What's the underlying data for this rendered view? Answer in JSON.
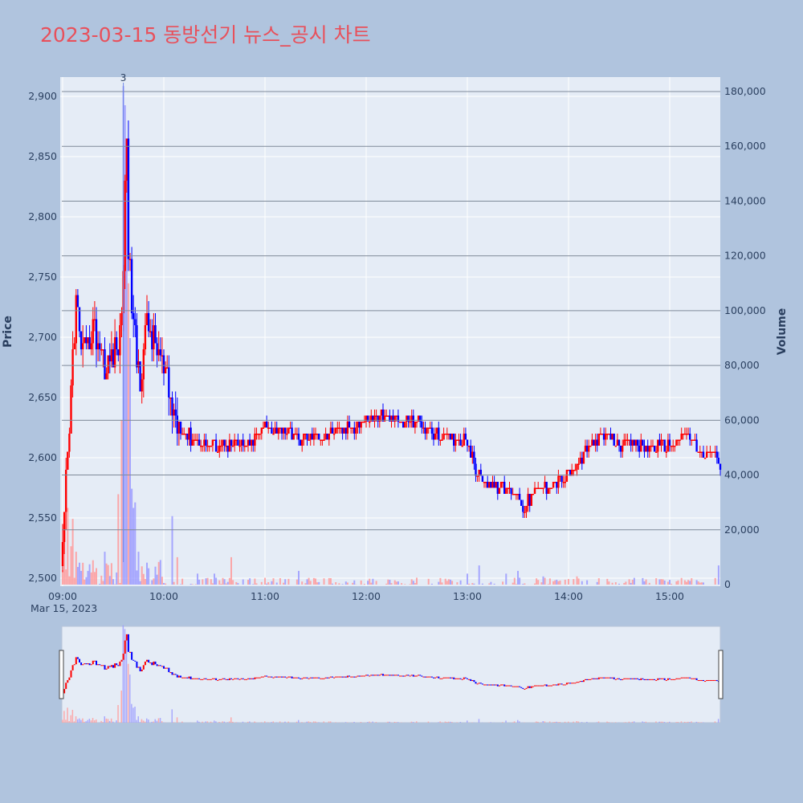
{
  "title": "2023-03-15 동방선기 뉴스_공시 차트",
  "colors": {
    "up": "#ff0000",
    "down": "#0000ff",
    "up_volume": "#ff9a9a",
    "down_volume": "#9a9aff",
    "background": "#b0c4de",
    "plot_bg": "#e5ecf6"
  },
  "chart_data": {
    "type": "candlestick",
    "title": "2023-03-15 동방선기 뉴스_공시 차트",
    "ylabel": "Price",
    "y2label": "Volume",
    "ylim": [
      2495,
      2910
    ],
    "y2lim": [
      0,
      185000
    ],
    "yticks": [
      "2,500",
      "2,550",
      "2,600",
      "2,650",
      "2,700",
      "2,750",
      "2,800",
      "2,850",
      "2,900"
    ],
    "y2ticks": [
      "0",
      "20,000",
      "40,000",
      "60,000",
      "80,000",
      "100,000",
      "120,000",
      "140,000",
      "160,000",
      "180,000"
    ],
    "xticks": [
      "09:00",
      "10:00",
      "11:00",
      "12:00",
      "13:00",
      "14:00",
      "15:00"
    ],
    "xdate": "Mar 15, 2023",
    "annotation": {
      "time": "09:36",
      "text": "3"
    },
    "grid": true,
    "rangeslider": true,
    "anchors": [
      [
        "09:00",
        2520
      ],
      [
        "09:02",
        2575
      ],
      [
        "09:04",
        2620
      ],
      [
        "09:06",
        2685
      ],
      [
        "09:08",
        2730
      ],
      [
        "09:10",
        2700
      ],
      [
        "09:12",
        2690
      ],
      [
        "09:14",
        2680
      ],
      [
        "09:16",
        2700
      ],
      [
        "09:18",
        2710
      ],
      [
        "09:20",
        2700
      ],
      [
        "09:22",
        2695
      ],
      [
        "09:24",
        2685
      ],
      [
        "09:26",
        2670
      ],
      [
        "09:28",
        2680
      ],
      [
        "09:30",
        2685
      ],
      [
        "09:32",
        2690
      ],
      [
        "09:34",
        2700
      ],
      [
        "09:36",
        2760
      ],
      [
        "09:37",
        2820
      ],
      [
        "09:38",
        2870
      ],
      [
        "09:39",
        2780
      ],
      [
        "09:40",
        2750
      ],
      [
        "09:42",
        2710
      ],
      [
        "09:44",
        2680
      ],
      [
        "09:46",
        2670
      ],
      [
        "09:48",
        2690
      ],
      [
        "09:50",
        2710
      ],
      [
        "09:52",
        2705
      ],
      [
        "09:54",
        2695
      ],
      [
        "09:56",
        2690
      ],
      [
        "09:58",
        2685
      ],
      [
        "10:00",
        2670
      ],
      [
        "10:02",
        2660
      ],
      [
        "10:05",
        2640
      ],
      [
        "10:10",
        2625
      ],
      [
        "10:15",
        2618
      ],
      [
        "10:20",
        2612
      ],
      [
        "10:25",
        2612
      ],
      [
        "10:30",
        2610
      ],
      [
        "10:40",
        2612
      ],
      [
        "10:50",
        2610
      ],
      [
        "11:00",
        2625
      ],
      [
        "11:10",
        2625
      ],
      [
        "11:20",
        2615
      ],
      [
        "11:30",
        2618
      ],
      [
        "11:40",
        2620
      ],
      [
        "11:50",
        2625
      ],
      [
        "12:00",
        2630
      ],
      [
        "12:10",
        2635
      ],
      [
        "12:20",
        2630
      ],
      [
        "12:30",
        2630
      ],
      [
        "12:40",
        2620
      ],
      [
        "12:50",
        2615
      ],
      [
        "13:00",
        2615
      ],
      [
        "13:05",
        2590
      ],
      [
        "13:10",
        2580
      ],
      [
        "13:20",
        2575
      ],
      [
        "13:30",
        2570
      ],
      [
        "13:33",
        2558
      ],
      [
        "13:40",
        2570
      ],
      [
        "13:50",
        2578
      ],
      [
        "14:00",
        2585
      ],
      [
        "14:05",
        2592
      ],
      [
        "14:10",
        2605
      ],
      [
        "14:15",
        2615
      ],
      [
        "14:20",
        2618
      ],
      [
        "14:30",
        2612
      ],
      [
        "14:40",
        2610
      ],
      [
        "14:50",
        2608
      ],
      [
        "15:00",
        2610
      ],
      [
        "15:05",
        2615
      ],
      [
        "15:10",
        2620
      ],
      [
        "15:15",
        2612
      ],
      [
        "15:20",
        2600
      ],
      [
        "15:25",
        2605
      ],
      [
        "15:30",
        2595
      ]
    ],
    "volume_spikes": [
      [
        "09:01",
        22000,
        "up"
      ],
      [
        "09:03",
        28000,
        "up"
      ],
      [
        "09:05",
        14000,
        "up"
      ],
      [
        "09:06",
        24000,
        "up"
      ],
      [
        "09:08",
        12000,
        "up"
      ],
      [
        "09:10",
        8000,
        "down"
      ],
      [
        "09:15",
        5000,
        "down"
      ],
      [
        "09:20",
        6000,
        "up"
      ],
      [
        "09:25",
        12000,
        "down"
      ],
      [
        "09:33",
        33000,
        "up"
      ],
      [
        "09:35",
        60000,
        "up"
      ],
      [
        "09:36",
        182000,
        "down"
      ],
      [
        "09:37",
        175000,
        "down"
      ],
      [
        "09:38",
        160000,
        "down"
      ],
      [
        "09:39",
        110000,
        "up"
      ],
      [
        "09:40",
        90000,
        "down"
      ],
      [
        "09:41",
        35000,
        "down"
      ],
      [
        "09:42",
        28000,
        "down"
      ],
      [
        "09:43",
        30000,
        "down"
      ],
      [
        "09:45",
        12000,
        "down"
      ],
      [
        "09:50",
        8000,
        "down"
      ],
      [
        "10:05",
        25000,
        "down"
      ],
      [
        "10:08",
        10000,
        "up"
      ],
      [
        "10:20",
        4000,
        "down"
      ],
      [
        "10:30",
        4000,
        "down"
      ],
      [
        "10:40",
        10000,
        "up"
      ],
      [
        "11:20",
        5000,
        "down"
      ],
      [
        "12:30",
        2500,
        "up"
      ],
      [
        "13:00",
        4000,
        "down"
      ],
      [
        "13:07",
        7000,
        "down"
      ],
      [
        "13:23",
        4000,
        "down"
      ],
      [
        "13:30",
        5000,
        "down"
      ],
      [
        "13:45",
        3000,
        "down"
      ],
      [
        "14:05",
        3000,
        "up"
      ],
      [
        "15:29",
        7000,
        "down"
      ]
    ]
  }
}
